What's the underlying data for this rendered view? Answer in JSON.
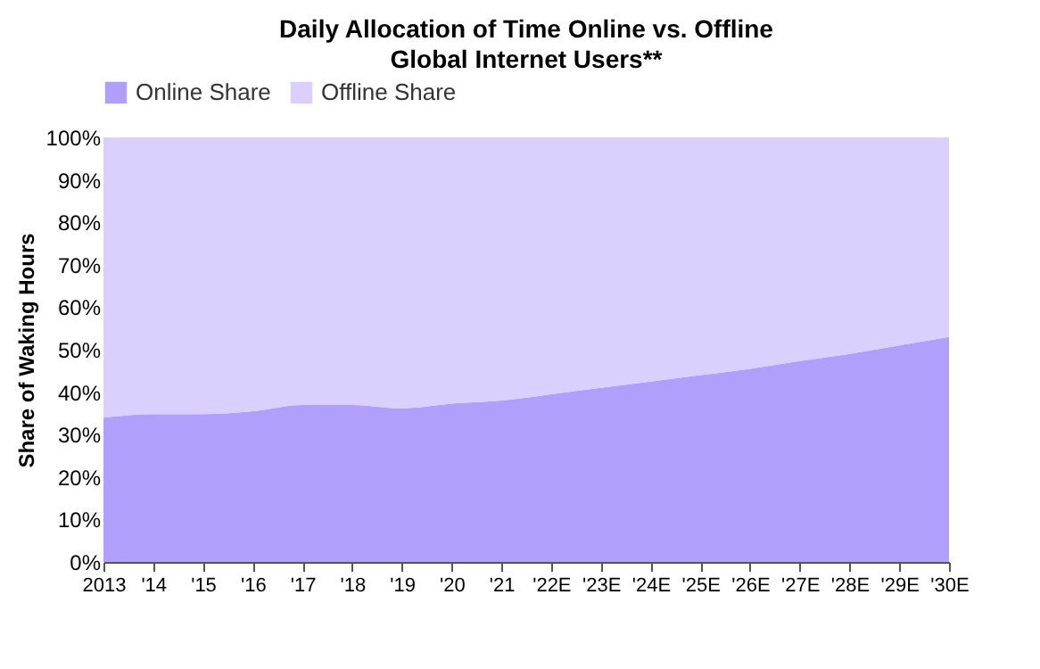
{
  "chart_data": {
    "type": "area",
    "title": "Daily Allocation of Time Online vs. Offline",
    "subtitle": "Global Internet Users**",
    "ylabel": "Share of Waking Hours",
    "stacked": true,
    "legend": "top",
    "grid": false,
    "categories": [
      "2013",
      "'14",
      "'15",
      "'16",
      "'17",
      "'18",
      "'19",
      "'20",
      "'21",
      "'22E",
      "'23E",
      "'24E",
      "'25E",
      "'26E",
      "'27E",
      "'28E",
      "'29E",
      "'30E"
    ],
    "series": [
      {
        "name": "Online Share",
        "color": "#b0a0fc",
        "values": [
          34,
          34.8,
          34.8,
          35.5,
          37,
          37,
          36.2,
          37.3,
          38,
          39.5,
          41,
          42.5,
          44,
          45.5,
          47.3,
          49,
          51,
          53
        ]
      },
      {
        "name": "Offline Share",
        "color": "#d9d0fe",
        "values": [
          66,
          65.2,
          65.2,
          64.5,
          63,
          63,
          63.8,
          62.7,
          62,
          60.5,
          59,
          57.5,
          56,
          54.5,
          52.7,
          51,
          49,
          47
        ]
      }
    ],
    "ylim": [
      0,
      100
    ],
    "yticks": [
      {
        "value": 0,
        "label": "0%"
      },
      {
        "value": 10,
        "label": "10%"
      },
      {
        "value": 20,
        "label": "20%"
      },
      {
        "value": 30,
        "label": "30%"
      },
      {
        "value": 40,
        "label": "40%"
      },
      {
        "value": 50,
        "label": "50%"
      },
      {
        "value": 60,
        "label": "60%"
      },
      {
        "value": 70,
        "label": "70%"
      },
      {
        "value": 80,
        "label": "80%"
      },
      {
        "value": 90,
        "label": "90%"
      },
      {
        "value": 100,
        "label": "100%"
      }
    ]
  }
}
